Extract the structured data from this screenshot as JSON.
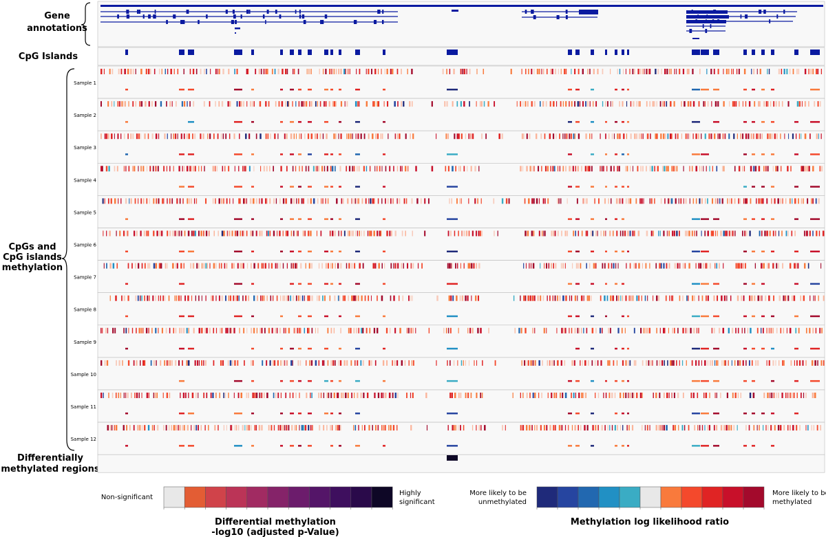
{
  "labels": {
    "gene_annotations": [
      "Gene",
      "annotations"
    ],
    "cpg_islands": "CpG Islands",
    "cpg_methylation": [
      "CpGs and",
      "CpG islands",
      "methylation"
    ],
    "dmr": [
      "Differentially",
      "methylated regions"
    ]
  },
  "samples": [
    "Sample 1",
    "Sample 2",
    "Sample 3",
    "Sample 4",
    "Sample 5",
    "Sample 6",
    "Sample 7",
    "Sample 8",
    "Sample 9",
    "Sample 10",
    "Sample 11",
    "Sample 12"
  ],
  "legend_pvalue": {
    "left_label": "Non-significant",
    "right_label": [
      "Highly",
      "significant"
    ],
    "title": [
      "Differential methylation",
      "-log10 (adjusted p-Value)"
    ],
    "colors": [
      "#e8e8e8",
      "#e35d34",
      "#d0434a",
      "#bb3457",
      "#a12b62",
      "#852369",
      "#6c1c6c",
      "#541568",
      "#3e0f5e",
      "#2a0a4a",
      "#0e0726"
    ]
  },
  "legend_llr": {
    "left_label": [
      "More likely to be",
      "unmethylated"
    ],
    "right_label": [
      "More likely to be",
      "methylated"
    ],
    "title": "Methylation log likelihood ratio",
    "colors": [
      "#1f2a7a",
      "#2645a0",
      "#2268b0",
      "#2190c4",
      "#3aacc4",
      "#e8e8e8",
      "#f97a3c",
      "#f4492c",
      "#e02424",
      "#c8102a",
      "#a30a2c"
    ]
  },
  "colors": {
    "annotation": "#0a1aa0",
    "dmr": "#0e0726",
    "track_bg": "#f8f8f8",
    "border": "#bbbbbb"
  }
}
